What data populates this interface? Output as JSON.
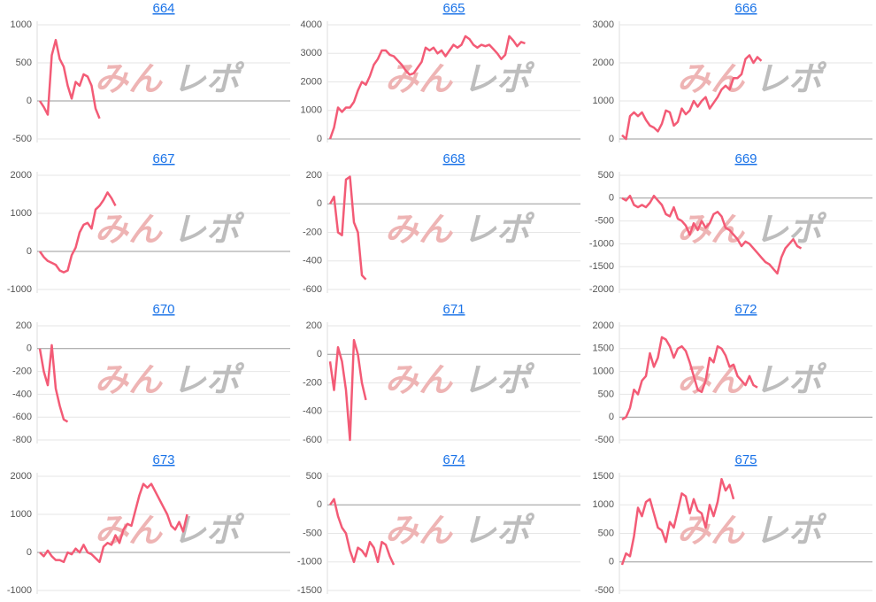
{
  "watermark": [
    "みん",
    "レポ"
  ],
  "chart_data": [
    {
      "type": "line",
      "title": "664",
      "color": "#f35b76",
      "grid": true,
      "ylim": [
        -500,
        1000
      ],
      "yticks": [
        -500,
        0,
        500,
        1000
      ],
      "values": [
        0,
        -80,
        -180,
        600,
        800,
        550,
        450,
        200,
        30,
        250,
        200,
        350,
        320,
        200,
        -100,
        -230
      ]
    },
    {
      "type": "line",
      "title": "665",
      "color": "#f35b76",
      "grid": true,
      "ylim": [
        0,
        4000
      ],
      "yticks": [
        0,
        1000,
        2000,
        3000,
        4000
      ],
      "values": [
        0,
        400,
        1100,
        950,
        1100,
        1100,
        1300,
        1700,
        2000,
        1900,
        2200,
        2600,
        2800,
        3100,
        3100,
        2950,
        2900,
        2750,
        2600,
        2400,
        2250,
        2300,
        2500,
        2700,
        3200,
        3100,
        3200,
        3000,
        3100,
        2900,
        3100,
        3300,
        3200,
        3300,
        3600,
        3500,
        3300,
        3200,
        3300,
        3250,
        3300,
        3150,
        3000,
        2800,
        2950,
        3600,
        3450,
        3250,
        3400,
        3350
      ]
    },
    {
      "type": "line",
      "title": "666",
      "color": "#f35b76",
      "grid": true,
      "ylim": [
        0,
        3000
      ],
      "yticks": [
        0,
        1000,
        2000,
        3000
      ],
      "values": [
        100,
        0,
        600,
        700,
        600,
        700,
        500,
        350,
        300,
        200,
        400,
        750,
        700,
        350,
        450,
        800,
        650,
        750,
        1000,
        850,
        1000,
        1100,
        800,
        950,
        1100,
        1300,
        1400,
        1300,
        1600,
        1600,
        1700,
        2100,
        2200,
        2000,
        2150,
        2050
      ]
    },
    {
      "type": "line",
      "title": "667",
      "color": "#f35b76",
      "grid": true,
      "ylim": [
        -1000,
        2000
      ],
      "yticks": [
        -1000,
        0,
        1000,
        2000
      ],
      "values": [
        0,
        -150,
        -250,
        -300,
        -350,
        -500,
        -550,
        -500,
        -100,
        100,
        500,
        700,
        750,
        600,
        1100,
        1200,
        1350,
        1550,
        1400,
        1200
      ]
    },
    {
      "type": "line",
      "title": "668",
      "color": "#f35b76",
      "grid": true,
      "ylim": [
        -600,
        200
      ],
      "yticks": [
        -600,
        -400,
        -200,
        0,
        200
      ],
      "values": [
        0,
        50,
        -200,
        -220,
        170,
        190,
        -130,
        -200,
        -500,
        -530
      ]
    },
    {
      "type": "line",
      "title": "669",
      "color": "#f35b76",
      "grid": true,
      "ylim": [
        -2000,
        500
      ],
      "yticks": [
        -2000,
        -1500,
        -1000,
        -500,
        0,
        500
      ],
      "values": [
        0,
        -50,
        50,
        -150,
        -200,
        -150,
        -200,
        -100,
        50,
        -50,
        -150,
        -350,
        -400,
        -200,
        -450,
        -500,
        -600,
        -800,
        -550,
        -700,
        -500,
        -650,
        -550,
        -350,
        -300,
        -400,
        -650,
        -700,
        -800,
        -900,
        -1050,
        -950,
        -1000,
        -1100,
        -1200,
        -1300,
        -1400,
        -1450,
        -1550,
        -1650,
        -1300,
        -1100,
        -1000,
        -900,
        -1050,
        -1100
      ]
    },
    {
      "type": "line",
      "title": "670",
      "color": "#f35b76",
      "grid": true,
      "ylim": [
        -800,
        200
      ],
      "yticks": [
        -800,
        -600,
        -400,
        -200,
        0,
        200
      ],
      "values": [
        0,
        -200,
        -320,
        30,
        -350,
        -500,
        -620,
        -640
      ]
    },
    {
      "type": "line",
      "title": "671",
      "color": "#f35b76",
      "grid": true,
      "ylim": [
        -600,
        200
      ],
      "yticks": [
        -600,
        -400,
        -200,
        0,
        200
      ],
      "values": [
        -50,
        -250,
        50,
        -50,
        -250,
        -600,
        100,
        0,
        -200,
        -320
      ]
    },
    {
      "type": "line",
      "title": "672",
      "color": "#f35b76",
      "grid": true,
      "ylim": [
        -500,
        2000
      ],
      "yticks": [
        -500,
        0,
        500,
        1000,
        1500,
        2000
      ],
      "values": [
        -50,
        0,
        200,
        600,
        500,
        800,
        900,
        1400,
        1100,
        1300,
        1750,
        1700,
        1550,
        1300,
        1500,
        1550,
        1450,
        1200,
        900,
        600,
        550,
        800,
        1300,
        1200,
        1550,
        1500,
        1350,
        1100,
        1150,
        900,
        800,
        700,
        900,
        700,
        650
      ]
    },
    {
      "type": "line",
      "title": "673",
      "color": "#f35b76",
      "grid": true,
      "ylim": [
        -1000,
        2000
      ],
      "yticks": [
        -1000,
        0,
        1000,
        2000
      ],
      "values": [
        0,
        -100,
        50,
        -100,
        -200,
        -200,
        -250,
        0,
        -50,
        100,
        0,
        200,
        0,
        -50,
        -150,
        -250,
        150,
        250,
        200,
        450,
        250,
        600,
        750,
        700,
        1100,
        1500,
        1800,
        1700,
        1800,
        1600,
        1400,
        1200,
        1000,
        700,
        600,
        800,
        550,
        1000
      ]
    },
    {
      "type": "line",
      "title": "674",
      "color": "#f35b76",
      "grid": true,
      "ylim": [
        -1500,
        500
      ],
      "yticks": [
        -1500,
        -1000,
        -500,
        0,
        500
      ],
      "values": [
        0,
        100,
        -200,
        -400,
        -500,
        -800,
        -1000,
        -750,
        -800,
        -900,
        -650,
        -750,
        -1000,
        -650,
        -700,
        -900,
        -1050
      ]
    },
    {
      "type": "line",
      "title": "675",
      "color": "#f35b76",
      "grid": true,
      "ylim": [
        -500,
        1500
      ],
      "yticks": [
        -500,
        0,
        500,
        1000,
        1500
      ],
      "values": [
        -50,
        150,
        100,
        450,
        950,
        800,
        1050,
        1100,
        850,
        600,
        550,
        350,
        700,
        600,
        900,
        1200,
        1150,
        850,
        1100,
        900,
        850,
        600,
        1000,
        800,
        1050,
        1450,
        1250,
        1350,
        1100
      ]
    }
  ]
}
